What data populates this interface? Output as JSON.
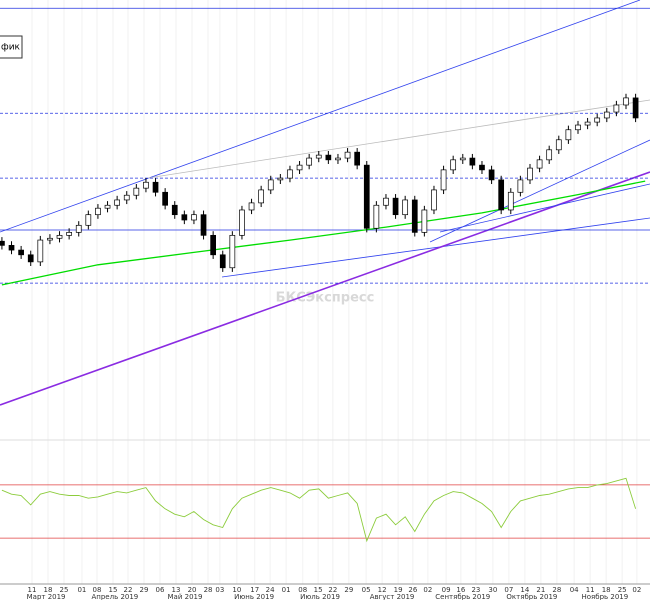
{
  "chart_data": {
    "type": "candlestick",
    "label": "фик",
    "watermark": "БКСЭкспресс",
    "x": [
      0,
      3,
      6,
      9,
      12,
      15,
      18,
      21,
      24,
      27,
      30,
      33,
      36,
      39,
      42,
      45,
      48,
      51,
      54,
      57,
      60,
      63,
      66,
      69,
      72,
      75,
      78,
      81,
      84,
      87,
      90,
      93,
      96,
      99,
      102,
      105,
      108,
      111,
      114,
      117,
      120,
      123,
      126,
      129,
      132,
      135,
      138,
      141,
      144,
      147,
      150,
      153,
      156,
      159,
      162,
      165,
      168,
      171,
      174,
      177,
      180,
      183,
      186,
      189,
      192,
      195,
      198
    ],
    "open": [
      2845,
      2838,
      2830,
      2822,
      2810,
      2847,
      2850,
      2855,
      2860,
      2872,
      2890,
      2901,
      2906,
      2915,
      2923,
      2935,
      2945,
      2928,
      2906,
      2890,
      2881,
      2890,
      2855,
      2822,
      2800,
      2855,
      2898,
      2910,
      2932,
      2949,
      2952,
      2966,
      2974,
      2986,
      2991,
      2983,
      2986,
      2996,
      2974,
      2867,
      2906,
      2918,
      2890,
      2915,
      2860,
      2898,
      2932,
      2966,
      2983,
      2986,
      2974,
      2966,
      2949,
      2898,
      2928,
      2949,
      2969,
      2983,
      3000,
      3017,
      3034,
      3042,
      3047,
      3054,
      3064,
      3076,
      3088
    ],
    "high": [
      2852,
      2845,
      2837,
      2829,
      2854,
      2857,
      2862,
      2867,
      2879,
      2897,
      2908,
      2913,
      2922,
      2930,
      2942,
      2952,
      2952,
      2935,
      2913,
      2897,
      2897,
      2897,
      2862,
      2829,
      2862,
      2905,
      2917,
      2939,
      2956,
      2959,
      2973,
      2981,
      2993,
      2998,
      2998,
      2993,
      3003,
      3003,
      2981,
      2913,
      2925,
      2925,
      2922,
      2922,
      2905,
      2939,
      2973,
      2990,
      2993,
      2993,
      2981,
      2973,
      2956,
      2935,
      2956,
      2976,
      2990,
      3007,
      3024,
      3041,
      3049,
      3054,
      3061,
      3071,
      3083,
      3095,
      3095
    ],
    "low": [
      2831,
      2823,
      2815,
      2803,
      2803,
      2840,
      2843,
      2848,
      2853,
      2865,
      2883,
      2894,
      2899,
      2908,
      2916,
      2928,
      2921,
      2899,
      2883,
      2874,
      2874,
      2848,
      2815,
      2793,
      2793,
      2848,
      2891,
      2903,
      2925,
      2942,
      2945,
      2959,
      2967,
      2979,
      2976,
      2976,
      2979,
      2967,
      2860,
      2860,
      2899,
      2883,
      2883,
      2853,
      2853,
      2891,
      2925,
      2959,
      2976,
      2967,
      2959,
      2942,
      2891,
      2891,
      2921,
      2942,
      2962,
      2976,
      2993,
      3010,
      3027,
      3035,
      3040,
      3047,
      3057,
      3069,
      3047
    ],
    "close": [
      2838,
      2830,
      2822,
      2810,
      2847,
      2850,
      2855,
      2860,
      2872,
      2890,
      2901,
      2906,
      2915,
      2923,
      2935,
      2945,
      2928,
      2906,
      2890,
      2881,
      2890,
      2855,
      2822,
      2800,
      2855,
      2898,
      2910,
      2932,
      2949,
      2952,
      2966,
      2974,
      2986,
      2991,
      2983,
      2986,
      2996,
      2974,
      2867,
      2906,
      2918,
      2890,
      2915,
      2860,
      2898,
      2932,
      2966,
      2983,
      2986,
      2974,
      2966,
      2949,
      2898,
      2928,
      2949,
      2969,
      2983,
      3000,
      3017,
      3034,
      3042,
      3047,
      3054,
      3064,
      3076,
      3088,
      3054
    ],
    "up_color": "#ffffff",
    "down_color": "#000000",
    "xlim": [
      -0.6,
      202.5
    ],
    "ylim": [
      2508,
      3254
    ],
    "xticks": [
      {
        "value": 9.4,
        "label": "11"
      },
      {
        "value": 14.4,
        "label": "18"
      },
      {
        "value": 19.4,
        "label": "25"
      },
      {
        "value": 25,
        "label": "01"
      },
      {
        "value": 29.7,
        "label": "08"
      },
      {
        "value": 34.7,
        "label": "15"
      },
      {
        "value": 39.4,
        "label": "22"
      },
      {
        "value": 44.4,
        "label": "29"
      },
      {
        "value": 49.4,
        "label": "06"
      },
      {
        "value": 54.4,
        "label": "13"
      },
      {
        "value": 59.4,
        "label": "20"
      },
      {
        "value": 64.4,
        "label": "28"
      },
      {
        "value": 68.1,
        "label": "03"
      },
      {
        "value": 73.4,
        "label": "10"
      },
      {
        "value": 79,
        "label": "17"
      },
      {
        "value": 83.8,
        "label": "24"
      },
      {
        "value": 88.8,
        "label": "01"
      },
      {
        "value": 94,
        "label": "08"
      },
      {
        "value": 98.8,
        "label": "15"
      },
      {
        "value": 103.4,
        "label": "22"
      },
      {
        "value": 108.4,
        "label": "29"
      },
      {
        "value": 113.8,
        "label": "05"
      },
      {
        "value": 118.8,
        "label": "12"
      },
      {
        "value": 123.8,
        "label": "19"
      },
      {
        "value": 128.4,
        "label": "26"
      },
      {
        "value": 133.1,
        "label": "02"
      },
      {
        "value": 138.8,
        "label": "09"
      },
      {
        "value": 143.4,
        "label": "16"
      },
      {
        "value": 148.1,
        "label": "23"
      },
      {
        "value": 153.4,
        "label": "30"
      },
      {
        "value": 158.4,
        "label": "07"
      },
      {
        "value": 163.4,
        "label": "14"
      },
      {
        "value": 168.4,
        "label": "21"
      },
      {
        "value": 173.4,
        "label": "28"
      },
      {
        "value": 178.8,
        "label": "04"
      },
      {
        "value": 183.8,
        "label": "11"
      },
      {
        "value": 188.8,
        "label": "18"
      },
      {
        "value": 193.8,
        "label": "25"
      },
      {
        "value": 198.4,
        "label": "02"
      }
    ],
    "month_labels": [
      {
        "value": 13.8,
        "label": "Март 2019"
      },
      {
        "value": 35.3,
        "label": "Апрель 2019"
      },
      {
        "value": 57.2,
        "label": "Май 2019"
      },
      {
        "value": 78.8,
        "label": "Июнь 2019"
      },
      {
        "value": 99.4,
        "label": "Июль 2019"
      },
      {
        "value": 121.9,
        "label": "Август 2019"
      },
      {
        "value": 144,
        "label": "Сентябрь 2019"
      },
      {
        "value": 165.6,
        "label": "Октябрь 2019"
      },
      {
        "value": 188.4,
        "label": "Ноябрь 2019"
      }
    ],
    "levels": [
      3240,
      3062,
      2952,
      2864,
      2774
    ],
    "level_styles": [
      "solid",
      "dashed",
      "dashed",
      "solid",
      "dashed"
    ],
    "level_color": "#2030e0",
    "ma": {
      "color": "#00dd00",
      "x": [
        0,
        30,
        60,
        90,
        120,
        150,
        180,
        201
      ],
      "values": [
        2771,
        2805,
        2826,
        2847,
        2869,
        2893,
        2924,
        2947
      ]
    },
    "rsi": {
      "color": "#8ccc3c",
      "ylim": [
        0,
        100
      ],
      "levels": [
        70,
        30
      ],
      "level_color": "#e04040",
      "values": [
        66,
        63,
        62,
        55,
        63,
        65,
        63,
        62,
        62,
        60,
        61,
        63,
        65,
        64,
        66,
        68,
        58,
        52,
        48,
        46,
        50,
        44,
        40,
        38,
        52,
        60,
        63,
        66,
        68,
        66,
        64,
        60,
        66,
        67,
        60,
        62,
        64,
        56,
        28,
        45,
        48,
        40,
        46,
        35,
        48,
        58,
        62,
        65,
        64,
        60,
        56,
        50,
        38,
        50,
        58,
        60,
        62,
        63,
        65,
        67,
        68,
        68,
        70,
        71,
        73,
        75,
        52
      ]
    }
  }
}
